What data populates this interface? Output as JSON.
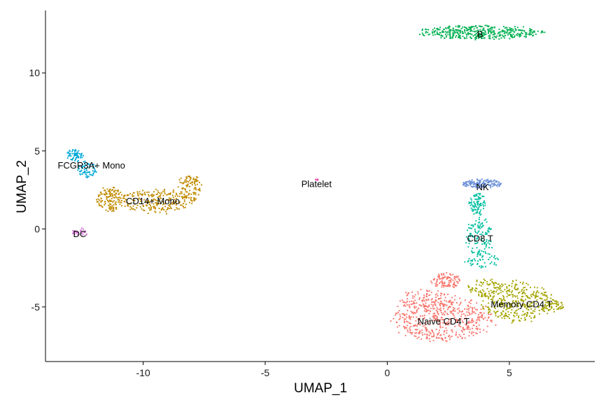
{
  "chart_data": {
    "type": "scatter",
    "title": "",
    "xlabel": "UMAP_1",
    "ylabel": "UMAP_2",
    "xlim": [
      -14,
      8.5
    ],
    "ylim": [
      -8.5,
      14
    ],
    "xticks": [
      -10,
      -5,
      0,
      5
    ],
    "yticks": [
      -5,
      0,
      5,
      10
    ],
    "grid": false,
    "legend": "none",
    "clusters": [
      {
        "name": "Naive CD4 T",
        "color": "#F8766D",
        "center": [
          2.3,
          -5.8
        ],
        "n": 700,
        "blobs": [
          {
            "cx": 2.3,
            "cy": -5.8,
            "rx": 2.1,
            "ry": 1.4,
            "w": 0.7
          },
          {
            "cx": 1.6,
            "cy": -4.6,
            "rx": 1.2,
            "ry": 0.7,
            "w": 0.15
          },
          {
            "cx": 2.4,
            "cy": -3.3,
            "rx": 0.6,
            "ry": 0.5,
            "w": 0.15
          }
        ]
      },
      {
        "name": "Memory CD4 T",
        "color": "#A3A500",
        "center": [
          5.3,
          -4.8
        ],
        "n": 480,
        "blobs": [
          {
            "cx": 5.3,
            "cy": -4.7,
            "rx": 1.5,
            "ry": 1.3,
            "w": 0.75
          },
          {
            "cx": 6.8,
            "cy": -4.9,
            "rx": 0.5,
            "ry": 0.4,
            "w": 0.1
          },
          {
            "cx": 4.0,
            "cy": -3.8,
            "rx": 0.7,
            "ry": 0.6,
            "w": 0.15
          }
        ]
      },
      {
        "name": "CD14+ Mono",
        "color": "#C08B00",
        "center": [
          -9.5,
          1.9
        ],
        "n": 480,
        "blobs": [
          {
            "cx": -9.5,
            "cy": 1.8,
            "rx": 1.4,
            "ry": 0.8,
            "w": 0.45
          },
          {
            "cx": -8.1,
            "cy": 2.6,
            "rx": 0.5,
            "ry": 0.9,
            "w": 0.25
          },
          {
            "cx": -11.3,
            "cy": 1.9,
            "rx": 0.6,
            "ry": 0.8,
            "w": 0.3
          }
        ]
      },
      {
        "name": "B",
        "color": "#00B050",
        "center": [
          3.8,
          12.5
        ],
        "n": 420,
        "blobs": [
          {
            "cx": 3.8,
            "cy": 12.6,
            "rx": 2.5,
            "ry": 0.45,
            "w": 1.0
          }
        ]
      },
      {
        "name": "CD8 T",
        "color": "#00BFA0",
        "center": [
          3.8,
          -0.2
        ],
        "n": 260,
        "blobs": [
          {
            "cx": 3.7,
            "cy": 1.6,
            "rx": 0.35,
            "ry": 0.7,
            "w": 0.35
          },
          {
            "cx": 3.8,
            "cy": -0.5,
            "rx": 0.6,
            "ry": 1.2,
            "w": 0.45
          },
          {
            "cx": 3.9,
            "cy": -2.0,
            "rx": 0.7,
            "ry": 0.5,
            "w": 0.2
          }
        ]
      },
      {
        "name": "FCGR3A+ Mono",
        "color": "#00A9D6",
        "center": [
          -12.6,
          4.1
        ],
        "n": 130,
        "blobs": [
          {
            "cx": -12.8,
            "cy": 4.7,
            "rx": 0.35,
            "ry": 0.4,
            "w": 0.5
          },
          {
            "cx": -12.3,
            "cy": 3.8,
            "rx": 0.4,
            "ry": 0.5,
            "w": 0.5
          }
        ]
      },
      {
        "name": "NK",
        "color": "#6A8FD8",
        "center": [
          3.9,
          2.8
        ],
        "n": 150,
        "blobs": [
          {
            "cx": 3.9,
            "cy": 2.9,
            "rx": 0.8,
            "ry": 0.3,
            "w": 1.0
          }
        ]
      },
      {
        "name": "DC",
        "color": "#D66BD8",
        "center": [
          -12.6,
          -0.2
        ],
        "n": 30,
        "blobs": [
          {
            "cx": -12.6,
            "cy": -0.2,
            "rx": 0.35,
            "ry": 0.25,
            "w": 1.0
          }
        ]
      },
      {
        "name": "Platelet",
        "color": "#F050B0",
        "center": [
          -2.9,
          3.2
        ],
        "n": 6,
        "blobs": [
          {
            "cx": -2.9,
            "cy": 3.15,
            "rx": 0.08,
            "ry": 0.05,
            "w": 1.0
          }
        ]
      }
    ],
    "labels": [
      {
        "text": "B",
        "x": 3.8,
        "y": 12.5
      },
      {
        "text": "FCGR3A+ Mono",
        "x": -13.5,
        "y": 4.1
      },
      {
        "text": "Platelet",
        "x": -2.9,
        "y": 2.9
      },
      {
        "text": "NK",
        "x": 3.9,
        "y": 2.7
      },
      {
        "text": "CD14+ Mono",
        "x": -9.6,
        "y": 1.8
      },
      {
        "text": "DC",
        "x": -12.6,
        "y": -0.3
      },
      {
        "text": "CD8 T",
        "x": 3.8,
        "y": -0.6
      },
      {
        "text": "Memory CD4 T",
        "x": 5.5,
        "y": -4.8
      },
      {
        "text": "Naive CD4 T",
        "x": 2.3,
        "y": -5.9
      }
    ]
  }
}
